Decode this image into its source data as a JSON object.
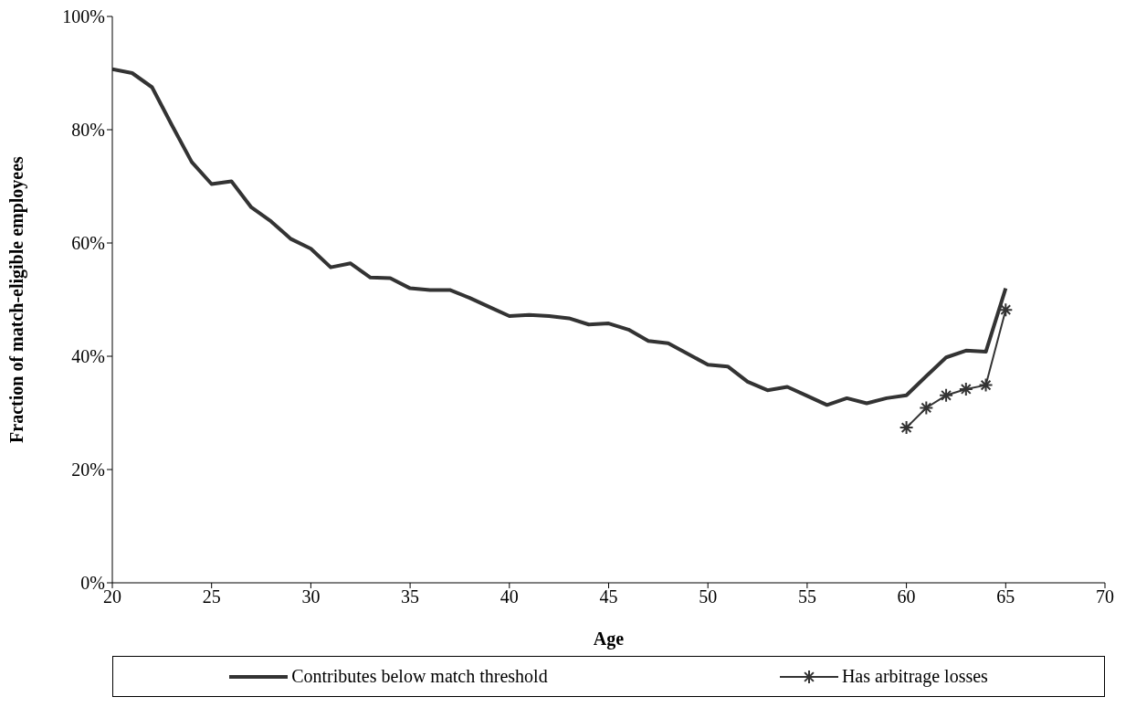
{
  "chart_data": {
    "type": "line",
    "xlabel": "Age",
    "ylabel": "Fraction of match-eligible employees",
    "x": [
      20,
      21,
      22,
      23,
      24,
      25,
      26,
      27,
      28,
      29,
      30,
      31,
      32,
      33,
      34,
      35,
      36,
      37,
      38,
      39,
      40,
      41,
      42,
      43,
      44,
      45,
      46,
      47,
      48,
      49,
      50,
      51,
      52,
      53,
      54,
      55,
      56,
      57,
      58,
      59,
      60,
      61,
      62,
      63,
      64,
      65
    ],
    "series": [
      {
        "name": "Contributes below match threshold",
        "color": "#333333",
        "marker": "none",
        "values": [
          90.7,
          90,
          87.5,
          80.8,
          74.3,
          70.4,
          70.9,
          66.3,
          63.8,
          60.7,
          59,
          55.7,
          56.4,
          53.9,
          53.8,
          52,
          51.7,
          51.7,
          50.3,
          48.7,
          47.1,
          47.3,
          47.1,
          46.7,
          45.6,
          45.8,
          44.7,
          42.7,
          42.3,
          40.4,
          38.5,
          38.2,
          35.5,
          34,
          34.6,
          33,
          31.4,
          32.6,
          31.7,
          32.6,
          33.1,
          36.5,
          39.8,
          41,
          40.8,
          52
        ]
      },
      {
        "name": "Has arbitrage losses",
        "color": "#333333",
        "marker": "cross",
        "x": [
          60,
          61,
          62,
          63,
          64,
          65
        ],
        "values": [
          27.4,
          30.9,
          33.1,
          34.2,
          34.9,
          48.2
        ]
      }
    ],
    "xlim": [
      20,
      70
    ],
    "xticks": [
      20,
      25,
      30,
      35,
      40,
      45,
      50,
      55,
      60,
      65,
      70
    ],
    "ylim": [
      0,
      100
    ],
    "yticks": [
      {
        "value": 0,
        "label": "0%"
      },
      {
        "value": 20,
        "label": "20%"
      },
      {
        "value": 40,
        "label": "40%"
      },
      {
        "value": 60,
        "label": "60%"
      },
      {
        "value": 80,
        "label": "80%"
      },
      {
        "value": 100,
        "label": "100%"
      }
    ],
    "grid": false,
    "legend": "bottom",
    "line_style": "solid"
  }
}
